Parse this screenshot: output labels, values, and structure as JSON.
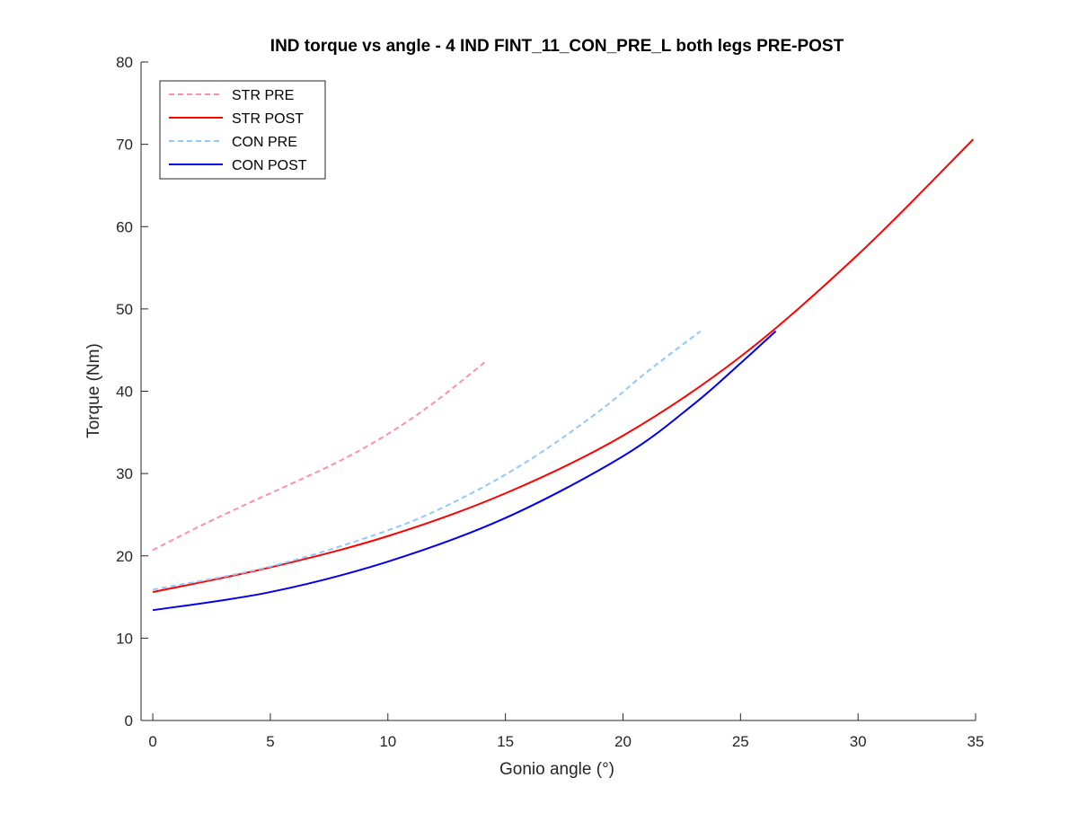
{
  "chart_data": {
    "type": "line",
    "title": "IND torque vs angle - 4 IND FINT_11_CON_PRE_L both legs PRE-POST",
    "xlabel": "Gonio angle (°)",
    "ylabel": "Torque (Nm)",
    "xlim": [
      -0.5,
      35
    ],
    "ylim": [
      0,
      80
    ],
    "xticks": [
      0,
      5,
      10,
      15,
      20,
      25,
      30,
      35
    ],
    "yticks": [
      0,
      10,
      20,
      30,
      40,
      50,
      60,
      70,
      80
    ],
    "grid": false,
    "legend_position": "top-left",
    "series": [
      {
        "name": "STR PRE",
        "color": "#ff8fa8",
        "dash": "dashed",
        "x": [
          0,
          2,
          4,
          6,
          8,
          10,
          12,
          14.2
        ],
        "y": [
          20.7,
          23.6,
          26.3,
          28.9,
          31.6,
          34.8,
          38.7,
          43.7
        ]
      },
      {
        "name": "STR POST",
        "color": "#ff0000",
        "dash": "solid",
        "x": [
          0,
          5,
          10,
          15,
          20,
          25,
          30,
          34.9
        ],
        "y": [
          15.6,
          18.6,
          22.4,
          27.6,
          34.6,
          44.2,
          56.6,
          70.6
        ]
      },
      {
        "name": "CON PRE",
        "color": "#8fc8ff",
        "dash": "dashed",
        "x": [
          0,
          5,
          10,
          13,
          16,
          19,
          21,
          23.3
        ],
        "y": [
          15.9,
          18.7,
          23.1,
          26.8,
          31.6,
          37.6,
          42.3,
          47.3
        ]
      },
      {
        "name": "CON POST",
        "color": "#0000ee",
        "dash": "solid",
        "x": [
          0,
          5,
          10,
          15,
          20,
          23,
          25,
          26.5
        ],
        "y": [
          13.4,
          15.6,
          19.3,
          24.6,
          32.1,
          38.4,
          43.4,
          47.3
        ]
      }
    ]
  }
}
